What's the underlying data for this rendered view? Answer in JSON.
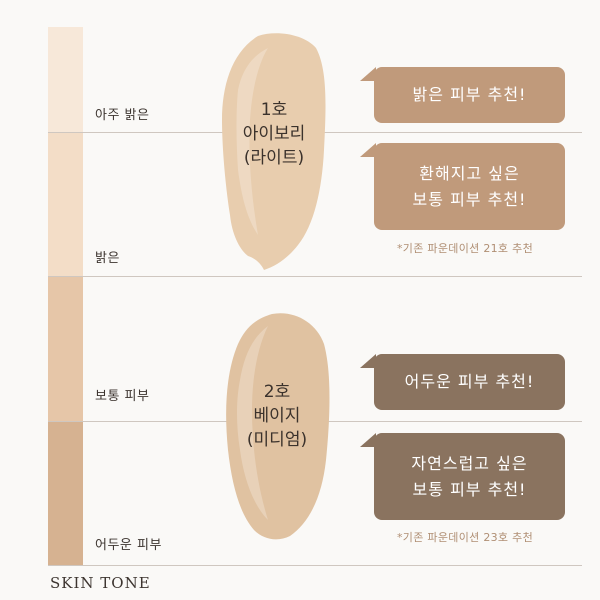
{
  "scale": {
    "tones": [
      {
        "label": "아주 밝은",
        "color": "#f7e8d9"
      },
      {
        "label": "밝은",
        "color": "#f3ddc7"
      },
      {
        "label": "보통 피부",
        "color": "#e6c6a8"
      },
      {
        "label": "어두운 피부",
        "color": "#d6b291"
      }
    ],
    "caption": "SKIN TONE"
  },
  "products": [
    {
      "number": "1호",
      "name": "아이보리",
      "shade": "(라이트)",
      "swatch_color": "#e8cdae",
      "recommendations": [
        {
          "lines": [
            "밝은 피부 추천!"
          ],
          "tone": "light"
        },
        {
          "lines": [
            "환해지고 싶은",
            "보통 피부 추천!"
          ],
          "tone": "light"
        }
      ],
      "note": "*기존 파운데이션 21호 추천"
    },
    {
      "number": "2호",
      "name": "베이지",
      "shade": "(미디엄)",
      "swatch_color": "#e0c2a1",
      "recommendations": [
        {
          "lines": [
            "어두운 피부 추천!"
          ],
          "tone": "dark"
        },
        {
          "lines": [
            "자연스럽고 싶은",
            "보통 피부 추천!"
          ],
          "tone": "dark"
        }
      ],
      "note": "*기존 파운데이션 23호 추천"
    }
  ]
}
